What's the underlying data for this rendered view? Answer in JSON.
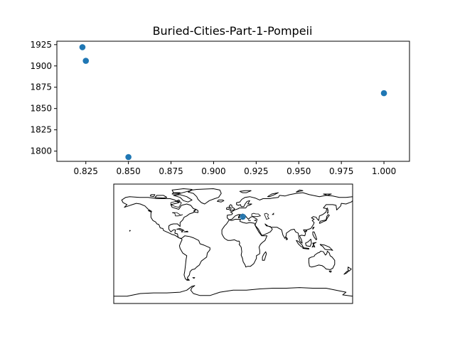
{
  "chart_data": [
    {
      "type": "scatter",
      "title": "Buried-Cities-Part-1-Pompeii",
      "xlabel": "",
      "ylabel": "",
      "xlim": [
        0.808,
        1.015
      ],
      "ylim": [
        1788,
        1929
      ],
      "x_ticks": [
        0.825,
        0.85,
        0.875,
        0.9,
        0.925,
        0.95,
        0.975,
        1.0
      ],
      "x_tick_labels": [
        "0.825",
        "0.850",
        "0.875",
        "0.900",
        "0.925",
        "0.950",
        "0.975",
        "1.000"
      ],
      "y_ticks": [
        1800,
        1825,
        1850,
        1875,
        1900,
        1925
      ],
      "y_tick_labels": [
        "1800",
        "1825",
        "1850",
        "1875",
        "1900",
        "1925"
      ],
      "grid": false,
      "legend": "none",
      "marker_color": "#1f77b4",
      "points": [
        {
          "x": 0.823,
          "y": 1922
        },
        {
          "x": 0.825,
          "y": 1906
        },
        {
          "x": 0.85,
          "y": 1793
        },
        {
          "x": 1.0,
          "y": 1868
        }
      ]
    },
    {
      "type": "map",
      "projection": "plate-carree",
      "extent": {
        "lon": [
          -180,
          180
        ],
        "lat": [
          -90,
          90
        ]
      },
      "marker_color": "#1f77b4",
      "points": [
        {
          "lon": 14.5,
          "lat": 40.8
        }
      ]
    }
  ]
}
